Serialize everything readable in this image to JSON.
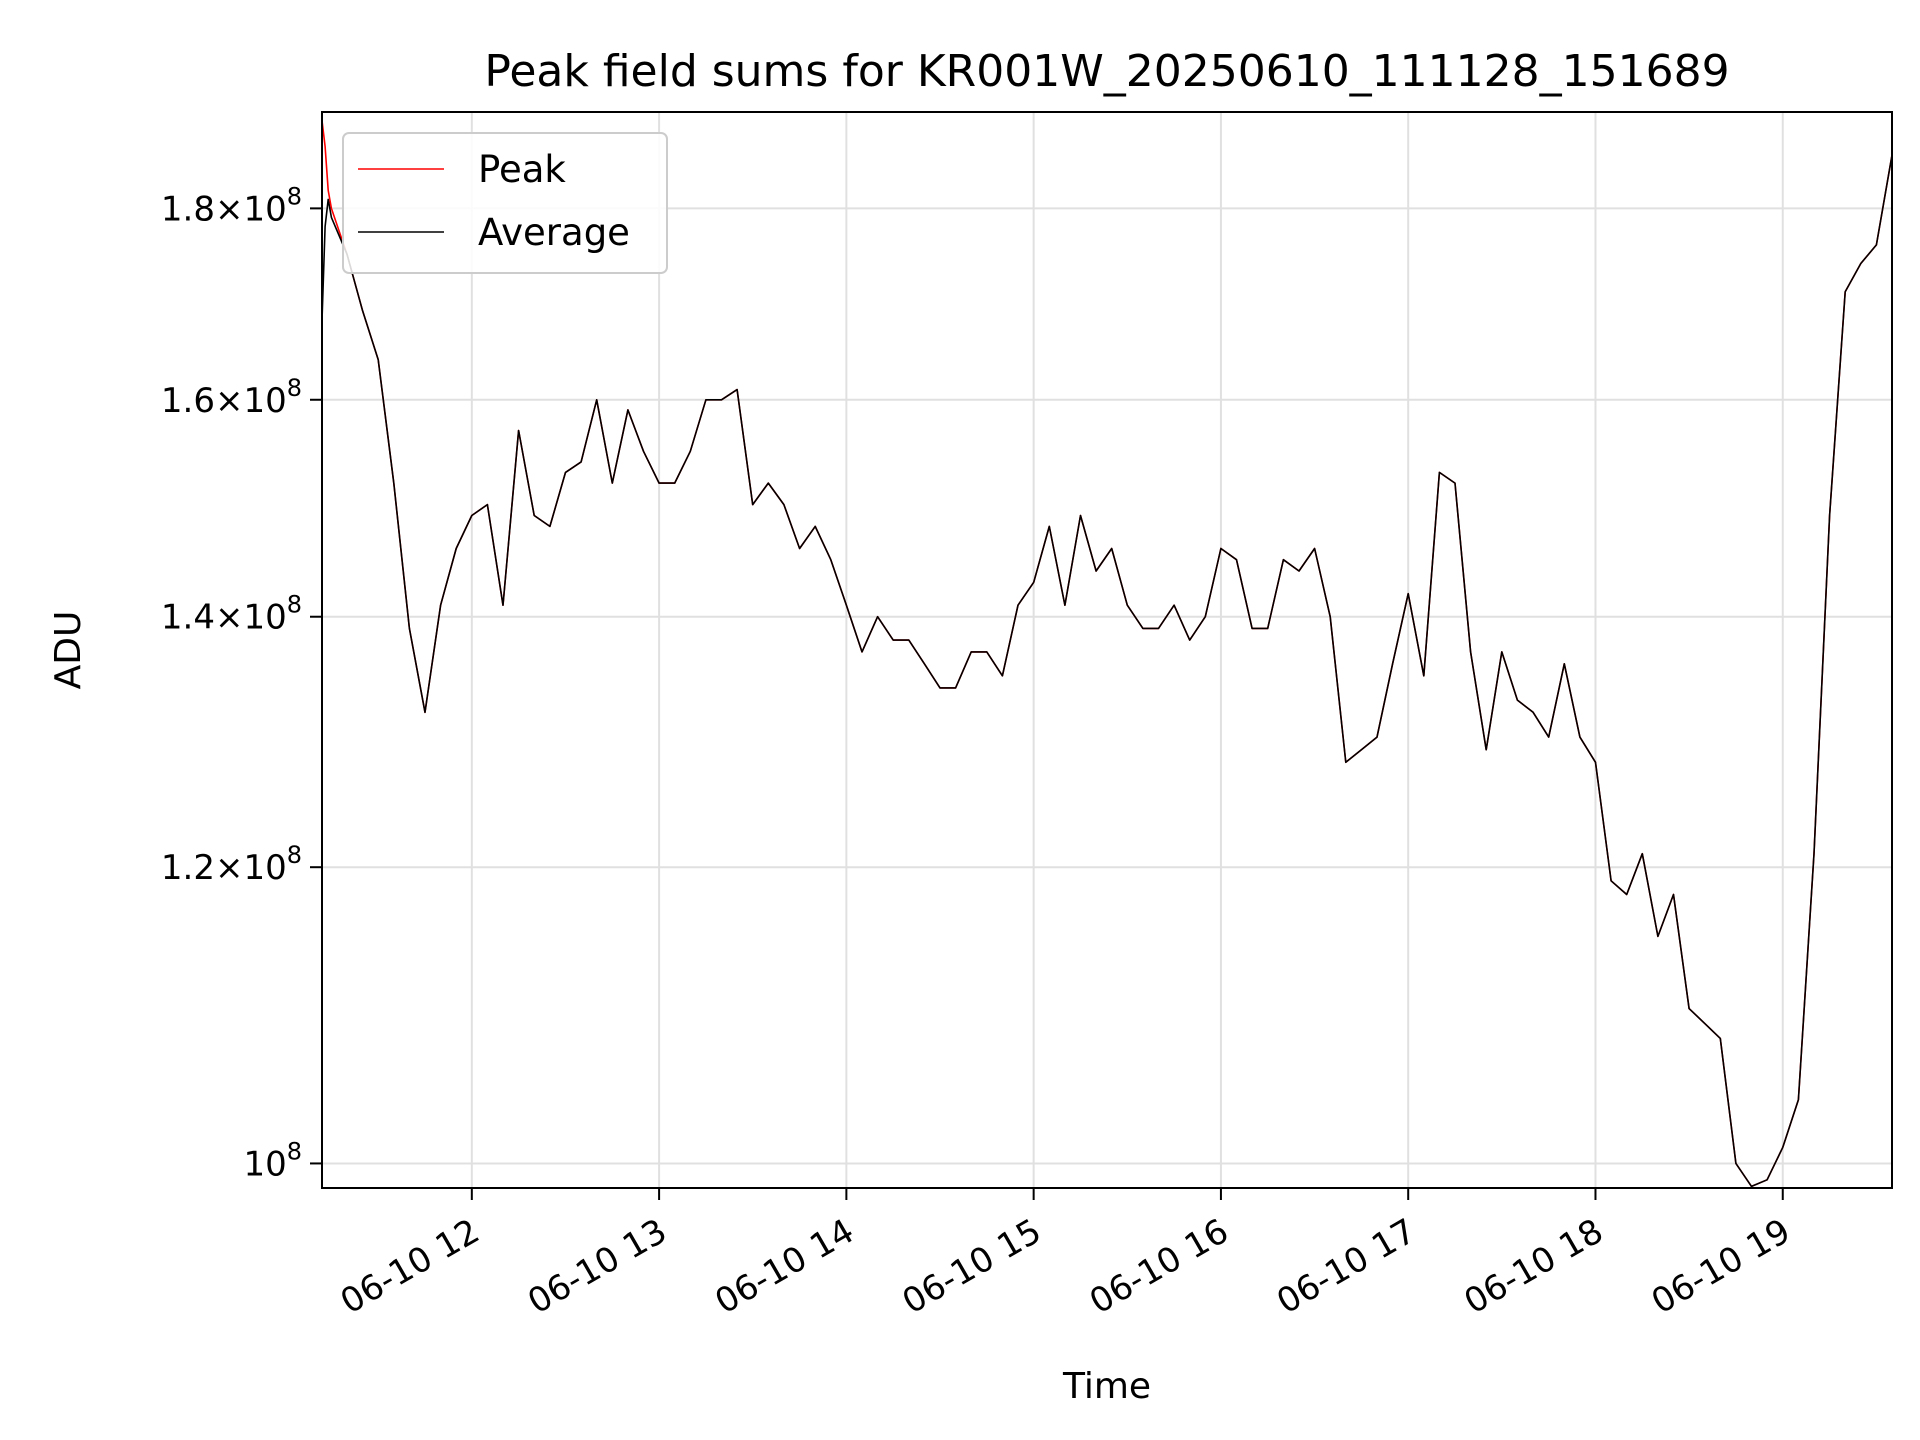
{
  "chart_data": {
    "type": "line",
    "title": "Peak field sums for KR001W_20250610_111128_151689",
    "xlabel": "Time",
    "ylabel": "ADU",
    "yscale": "log",
    "grid": true,
    "legend_position": "top-left",
    "xlim": [
      "06-10 11:12",
      "06-10 19:35"
    ],
    "ylim": [
      98500000,
      191000000
    ],
    "x_ticks": [
      "06-10 12",
      "06-10 13",
      "06-10 14",
      "06-10 15",
      "06-10 16",
      "06-10 17",
      "06-10 18",
      "06-10 19"
    ],
    "y_ticks": [
      {
        "value": 100000000,
        "mantissa": "",
        "base": "10",
        "exponent": "8"
      },
      {
        "value": 120000000,
        "mantissa": "1.2",
        "base": "10",
        "exponent": "8"
      },
      {
        "value": 140000000,
        "mantissa": "1.4",
        "base": "10",
        "exponent": "8"
      },
      {
        "value": 160000000,
        "mantissa": "1.6",
        "base": "10",
        "exponent": "8"
      },
      {
        "value": 180000000,
        "mantissa": "1.8",
        "base": "10",
        "exponent": "8"
      }
    ],
    "series": [
      {
        "name": "Peak",
        "color": "#ff0000",
        "x": [
          "06-10 11:12",
          "06-10 11:13",
          "06-10 11:14",
          "06-10 11:15",
          "06-10 11:20",
          "06-10 11:25",
          "06-10 11:30",
          "06-10 11:35",
          "06-10 11:40",
          "06-10 11:45",
          "06-10 11:50",
          "06-10 11:55",
          "06-10 12:00",
          "06-10 12:05",
          "06-10 12:10",
          "06-10 12:15",
          "06-10 12:20",
          "06-10 12:25",
          "06-10 12:30",
          "06-10 12:35",
          "06-10 12:40",
          "06-10 12:45",
          "06-10 12:50",
          "06-10 12:55",
          "06-10 13:00",
          "06-10 13:05",
          "06-10 13:10",
          "06-10 13:15",
          "06-10 13:20",
          "06-10 13:25",
          "06-10 13:30",
          "06-10 13:35",
          "06-10 13:40",
          "06-10 13:45",
          "06-10 13:50",
          "06-10 13:55",
          "06-10 14:00",
          "06-10 14:05",
          "06-10 14:10",
          "06-10 14:15",
          "06-10 14:20",
          "06-10 14:25",
          "06-10 14:30",
          "06-10 14:35",
          "06-10 14:40",
          "06-10 14:45",
          "06-10 14:50",
          "06-10 14:55",
          "06-10 15:00",
          "06-10 15:05",
          "06-10 15:10",
          "06-10 15:15",
          "06-10 15:20",
          "06-10 15:25",
          "06-10 15:30",
          "06-10 15:35",
          "06-10 15:40",
          "06-10 15:45",
          "06-10 15:50",
          "06-10 15:55",
          "06-10 16:00",
          "06-10 16:05",
          "06-10 16:10",
          "06-10 16:15",
          "06-10 16:20",
          "06-10 16:25",
          "06-10 16:30",
          "06-10 16:35",
          "06-10 16:40",
          "06-10 16:45",
          "06-10 16:50",
          "06-10 16:55",
          "06-10 17:00",
          "06-10 17:05",
          "06-10 17:10",
          "06-10 17:15",
          "06-10 17:20",
          "06-10 17:25",
          "06-10 17:30",
          "06-10 17:35",
          "06-10 17:40",
          "06-10 17:45",
          "06-10 17:50",
          "06-10 17:55",
          "06-10 18:00",
          "06-10 18:05",
          "06-10 18:10",
          "06-10 18:15",
          "06-10 18:20",
          "06-10 18:25",
          "06-10 18:30",
          "06-10 18:35",
          "06-10 18:40",
          "06-10 18:45",
          "06-10 18:50",
          "06-10 18:55",
          "06-10 19:00",
          "06-10 19:05",
          "06-10 19:10",
          "06-10 19:15",
          "06-10 19:20",
          "06-10 19:25",
          "06-10 19:30",
          "06-10 19:35"
        ],
        "y": [
          190000000,
          187000000,
          182000000,
          180000000,
          175000000,
          169000000,
          164000000,
          152000000,
          139000000,
          132000000,
          141000000,
          146000000,
          149000000,
          150000000,
          141000000,
          157000000,
          149000000,
          148000000,
          153000000,
          154000000,
          160000000,
          152000000,
          159000000,
          155000000,
          152000000,
          152000000,
          155000000,
          160000000,
          160000000,
          161000000,
          150000000,
          152000000,
          150000000,
          146000000,
          148000000,
          145000000,
          141000000,
          137000000,
          140000000,
          138000000,
          138000000,
          136000000,
          134000000,
          134000000,
          137000000,
          137000000,
          135000000,
          141000000,
          143000000,
          148000000,
          141000000,
          149000000,
          144000000,
          146000000,
          141000000,
          139000000,
          139000000,
          141000000,
          138000000,
          140000000,
          146000000,
          145000000,
          139000000,
          139000000,
          145000000,
          144000000,
          146000000,
          140000000,
          128000000,
          129000000,
          130000000,
          136000000,
          142000000,
          135000000,
          153000000,
          152000000,
          137000000,
          129000000,
          137000000,
          133000000,
          132000000,
          130000000,
          136000000,
          130000000,
          128000000,
          119000000,
          118000000,
          121000000,
          115000000,
          118000000,
          110000000,
          109000000,
          108000000,
          100000000,
          98600000,
          99000000,
          101000000,
          104000000,
          121000000,
          149000000,
          171000000,
          174000000,
          176000000,
          186000000
        ]
      },
      {
        "name": "Average",
        "color": "#000000",
        "x": [
          "06-10 11:12",
          "06-10 11:13",
          "06-10 11:14",
          "06-10 11:15",
          "06-10 11:20",
          "06-10 11:25",
          "06-10 11:30",
          "06-10 11:35",
          "06-10 11:40",
          "06-10 11:45",
          "06-10 11:50",
          "06-10 11:55",
          "06-10 12:00",
          "06-10 12:05",
          "06-10 12:10",
          "06-10 12:15",
          "06-10 12:20",
          "06-10 12:25",
          "06-10 12:30",
          "06-10 12:35",
          "06-10 12:40",
          "06-10 12:45",
          "06-10 12:50",
          "06-10 12:55",
          "06-10 13:00",
          "06-10 13:05",
          "06-10 13:10",
          "06-10 13:15",
          "06-10 13:20",
          "06-10 13:25",
          "06-10 13:30",
          "06-10 13:35",
          "06-10 13:40",
          "06-10 13:45",
          "06-10 13:50",
          "06-10 13:55",
          "06-10 14:00",
          "06-10 14:05",
          "06-10 14:10",
          "06-10 14:15",
          "06-10 14:20",
          "06-10 14:25",
          "06-10 14:30",
          "06-10 14:35",
          "06-10 14:40",
          "06-10 14:45",
          "06-10 14:50",
          "06-10 14:55",
          "06-10 15:00",
          "06-10 15:05",
          "06-10 15:10",
          "06-10 15:15",
          "06-10 15:20",
          "06-10 15:25",
          "06-10 15:30",
          "06-10 15:35",
          "06-10 15:40",
          "06-10 15:45",
          "06-10 15:50",
          "06-10 15:55",
          "06-10 16:00",
          "06-10 16:05",
          "06-10 16:10",
          "06-10 16:15",
          "06-10 16:20",
          "06-10 16:25",
          "06-10 16:30",
          "06-10 16:35",
          "06-10 16:40",
          "06-10 16:45",
          "06-10 16:50",
          "06-10 16:55",
          "06-10 17:00",
          "06-10 17:05",
          "06-10 17:10",
          "06-10 17:15",
          "06-10 17:20",
          "06-10 17:25",
          "06-10 17:30",
          "06-10 17:35",
          "06-10 17:40",
          "06-10 17:45",
          "06-10 17:50",
          "06-10 17:55",
          "06-10 18:00",
          "06-10 18:05",
          "06-10 18:10",
          "06-10 18:15",
          "06-10 18:20",
          "06-10 18:25",
          "06-10 18:30",
          "06-10 18:35",
          "06-10 18:40",
          "06-10 18:45",
          "06-10 18:50",
          "06-10 18:55",
          "06-10 19:00",
          "06-10 19:05",
          "06-10 19:10",
          "06-10 19:15",
          "06-10 19:20",
          "06-10 19:25",
          "06-10 19:30",
          "06-10 19:35"
        ],
        "y": [
          168000000,
          178000000,
          181000000,
          179000000,
          175000000,
          169000000,
          164000000,
          152000000,
          139000000,
          132000000,
          141000000,
          146000000,
          149000000,
          150000000,
          141000000,
          157000000,
          149000000,
          148000000,
          153000000,
          154000000,
          160000000,
          152000000,
          159000000,
          155000000,
          152000000,
          152000000,
          155000000,
          160000000,
          160000000,
          161000000,
          150000000,
          152000000,
          150000000,
          146000000,
          148000000,
          145000000,
          141000000,
          137000000,
          140000000,
          138000000,
          138000000,
          136000000,
          134000000,
          134000000,
          137000000,
          137000000,
          135000000,
          141000000,
          143000000,
          148000000,
          141000000,
          149000000,
          144000000,
          146000000,
          141000000,
          139000000,
          139000000,
          141000000,
          138000000,
          140000000,
          146000000,
          145000000,
          139000000,
          139000000,
          145000000,
          144000000,
          146000000,
          140000000,
          128000000,
          129000000,
          130000000,
          136000000,
          142000000,
          135000000,
          153000000,
          152000000,
          137000000,
          129000000,
          137000000,
          133000000,
          132000000,
          130000000,
          136000000,
          130000000,
          128000000,
          119000000,
          118000000,
          121000000,
          115000000,
          118000000,
          110000000,
          109000000,
          108000000,
          100000000,
          98600000,
          99000000,
          101000000,
          104000000,
          121000000,
          149000000,
          171000000,
          174000000,
          176000000,
          186000000
        ]
      }
    ]
  }
}
